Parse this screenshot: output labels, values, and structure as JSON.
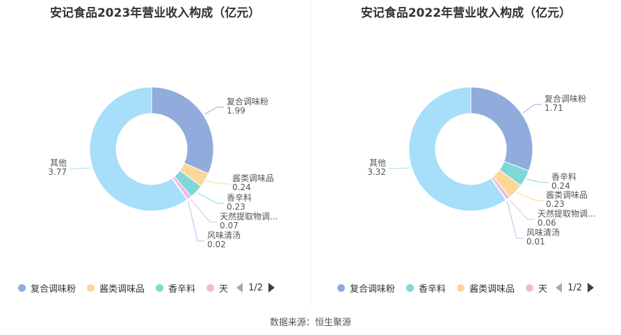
{
  "source_text": "数据来源：恒生聚源",
  "chart_data": [
    {
      "type": "pie",
      "title": "安记食品2023年营业收入构成（亿元）",
      "donut": true,
      "slices": [
        {
          "name": "复合调味粉",
          "value": 1.99,
          "label": "复合调味粉",
          "value_label": "1.99",
          "color": "#91acdc"
        },
        {
          "name": "酱类调味品",
          "value": 0.24,
          "label": "酱类调味品",
          "value_label": "0.24",
          "color": "#fcd79a"
        },
        {
          "name": "香辛料",
          "value": 0.23,
          "label": "香辛料",
          "value_label": "0.23",
          "color": "#7fd8d8"
        },
        {
          "name": "天然提取物调味料",
          "value": 0.07,
          "label": "天然提取物调...",
          "value_label": "0.07",
          "color": "#edbbe0"
        },
        {
          "name": "风味清汤",
          "value": 0.02,
          "label": "风味清汤",
          "value_label": "0.02",
          "color": "#b9b9f2"
        },
        {
          "name": "其他",
          "value": 3.77,
          "label": "其他",
          "value_label": "3.77",
          "color": "#a7def9"
        }
      ],
      "legend": {
        "placement": "bottom",
        "items": [
          {
            "label": "复合调味粉",
            "color": "#91acdc"
          },
          {
            "label": "酱类调味品",
            "color": "#fcd79a"
          },
          {
            "label": "香辛料",
            "color": "#7fd8d8"
          },
          {
            "label": "天",
            "color": "#edbbe0"
          }
        ],
        "page": "1/2"
      }
    },
    {
      "type": "pie",
      "title": "安记食品2022年营业收入构成（亿元）",
      "donut": true,
      "slices": [
        {
          "name": "复合调味粉",
          "value": 1.71,
          "label": "复合调味粉",
          "value_label": "1.71",
          "color": "#91acdc"
        },
        {
          "name": "香辛料",
          "value": 0.24,
          "label": "香辛料",
          "value_label": "0.24",
          "color": "#7fd8d8"
        },
        {
          "name": "酱类调味品",
          "value": 0.23,
          "label": "酱类调味品",
          "value_label": "0.23",
          "color": "#fcd79a"
        },
        {
          "name": "天然提取物调味料",
          "value": 0.06,
          "label": "天然提取物调...",
          "value_label": "0.06",
          "color": "#edbbe0"
        },
        {
          "name": "风味清汤",
          "value": 0.01,
          "label": "风味清汤",
          "value_label": "0.01",
          "color": "#b9b9f2"
        },
        {
          "name": "其他",
          "value": 3.32,
          "label": "其他",
          "value_label": "3.32",
          "color": "#a7def9"
        }
      ],
      "legend": {
        "placement": "bottom",
        "items": [
          {
            "label": "复合调味粉",
            "color": "#91acdc"
          },
          {
            "label": "香辛料",
            "color": "#7fd8d8"
          },
          {
            "label": "酱类调味品",
            "color": "#fcd79a"
          },
          {
            "label": "天",
            "color": "#edbbe0"
          }
        ],
        "page": "1/2"
      }
    }
  ]
}
